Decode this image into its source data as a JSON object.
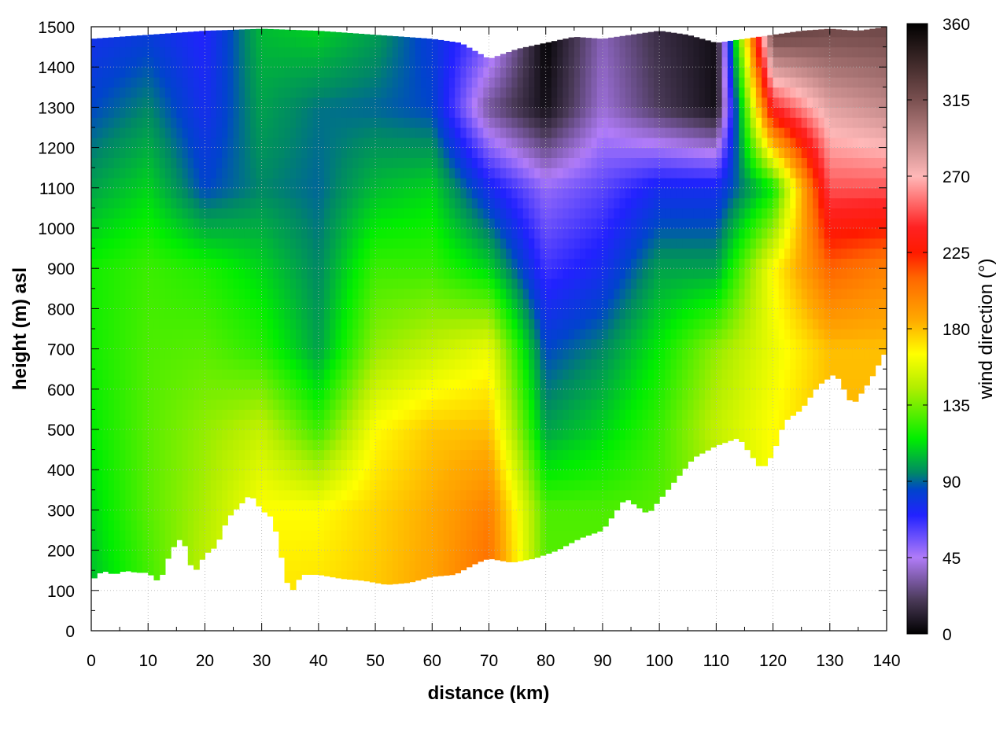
{
  "chart_data": {
    "type": "heatmap",
    "title": "",
    "xlabel": "distance (km)",
    "ylabel": "height (m) asl",
    "colorbar_label": "wind direction (°)",
    "xlim": [
      0,
      140
    ],
    "ylim": [
      0,
      1500
    ],
    "xticks": [
      0,
      10,
      20,
      30,
      40,
      50,
      60,
      70,
      80,
      90,
      100,
      110,
      120,
      130,
      140
    ],
    "yticks": [
      0,
      100,
      200,
      300,
      400,
      500,
      600,
      700,
      800,
      900,
      1000,
      1100,
      1200,
      1300,
      1400,
      1500
    ],
    "colorbar_range": [
      0,
      360
    ],
    "colorbar_ticks": [
      0,
      45,
      90,
      135,
      180,
      225,
      270,
      315,
      360
    ],
    "grid": true,
    "colormap": [
      {
        "value": 0,
        "color": "#000000"
      },
      {
        "value": 20,
        "color": "#4a3a58"
      },
      {
        "value": 45,
        "color": "#b07cf8"
      },
      {
        "value": 70,
        "color": "#2222ff"
      },
      {
        "value": 85,
        "color": "#0044cc"
      },
      {
        "value": 95,
        "color": "#008866"
      },
      {
        "value": 115,
        "color": "#00ee00"
      },
      {
        "value": 145,
        "color": "#b0ee00"
      },
      {
        "value": 165,
        "color": "#ffff00"
      },
      {
        "value": 185,
        "color": "#ffaa00"
      },
      {
        "value": 210,
        "color": "#ff6600"
      },
      {
        "value": 225,
        "color": "#ff1a00"
      },
      {
        "value": 240,
        "color": "#ff2222"
      },
      {
        "value": 270,
        "color": "#ffb8b8"
      },
      {
        "value": 315,
        "color": "#7a5050"
      },
      {
        "value": 360,
        "color": "#000000"
      }
    ],
    "terrain": {
      "distance_km": [
        0,
        2,
        4,
        6,
        8,
        10,
        12,
        14,
        16,
        18,
        20,
        22,
        24,
        26,
        28,
        30,
        32,
        34,
        35,
        37,
        40,
        44,
        48,
        52,
        56,
        60,
        64,
        68,
        70,
        74,
        78,
        82,
        86,
        90,
        94,
        98,
        102,
        106,
        110,
        114,
        118,
        120,
        122,
        125,
        128,
        131,
        134,
        137,
        140
      ],
      "height_m": [
        125,
        150,
        140,
        150,
        145,
        145,
        120,
        200,
        235,
        140,
        190,
        210,
        280,
        310,
        340,
        300,
        280,
        150,
        90,
        140,
        140,
        130,
        125,
        115,
        120,
        135,
        140,
        170,
        180,
        170,
        180,
        200,
        230,
        250,
        330,
        290,
        360,
        430,
        460,
        480,
        400,
        440,
        520,
        550,
        610,
        640,
        560,
        620,
        700
      ]
    },
    "top_edge": {
      "distance_km": [
        0,
        10,
        20,
        30,
        40,
        50,
        60,
        65,
        70,
        75,
        80,
        85,
        90,
        95,
        100,
        105,
        110,
        115,
        120,
        125,
        130,
        135,
        140
      ],
      "height_m": [
        1470,
        1480,
        1490,
        1495,
        1490,
        1480,
        1470,
        1460,
        1420,
        1445,
        1460,
        1475,
        1470,
        1480,
        1490,
        1480,
        1460,
        1470,
        1480,
        1490,
        1495,
        1490,
        1500
      ]
    },
    "field": {
      "distance_km": [
        0,
        10,
        20,
        30,
        40,
        50,
        60,
        70,
        80,
        90,
        100,
        110,
        120,
        130,
        140
      ],
      "height_m": [
        100,
        300,
        500,
        700,
        900,
        1100,
        1300,
        1500
      ],
      "wind_direction_deg": [
        [
          105,
          125,
          150,
          170,
          172,
          178,
          188,
          210,
          130,
          130,
          130,
          140,
          165,
          180,
          180
        ],
        [
          110,
          130,
          145,
          165,
          165,
          175,
          185,
          200,
          128,
          128,
          130,
          140,
          165,
          180,
          180
        ],
        [
          115,
          130,
          140,
          150,
          125,
          165,
          178,
          180,
          100,
          110,
          125,
          150,
          165,
          182,
          182
        ],
        [
          118,
          128,
          130,
          122,
          100,
          140,
          150,
          160,
          85,
          95,
          115,
          140,
          160,
          180,
          180
        ],
        [
          118,
          125,
          120,
          110,
          95,
          125,
          125,
          110,
          65,
          75,
          100,
          100,
          165,
          210,
          200
        ],
        [
          100,
          110,
          85,
          95,
          90,
          105,
          110,
          75,
          50,
          60,
          75,
          75,
          115,
          250,
          250
        ],
        [
          85,
          95,
          75,
          100,
          92,
          90,
          85,
          30,
          5,
          40,
          20,
          5,
          240,
          280,
          290
        ],
        [
          75,
          80,
          70,
          105,
          110,
          100,
          80,
          60,
          0,
          35,
          15,
          5,
          330,
          320,
          320
        ]
      ]
    }
  }
}
